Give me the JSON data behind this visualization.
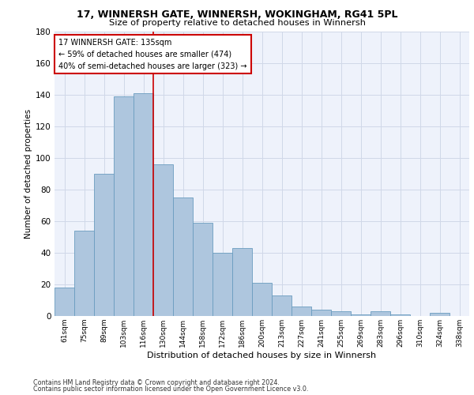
{
  "title_line1": "17, WINNERSH GATE, WINNERSH, WOKINGHAM, RG41 5PL",
  "title_line2": "Size of property relative to detached houses in Winnersh",
  "xlabel": "Distribution of detached houses by size in Winnersh",
  "ylabel": "Number of detached properties",
  "categories": [
    "61sqm",
    "75sqm",
    "89sqm",
    "103sqm",
    "116sqm",
    "130sqm",
    "144sqm",
    "158sqm",
    "172sqm",
    "186sqm",
    "200sqm",
    "213sqm",
    "227sqm",
    "241sqm",
    "255sqm",
    "269sqm",
    "283sqm",
    "296sqm",
    "310sqm",
    "324sqm",
    "338sqm"
  ],
  "values": [
    18,
    54,
    90,
    139,
    141,
    96,
    75,
    59,
    40,
    43,
    21,
    13,
    6,
    4,
    3,
    1,
    3,
    1,
    0,
    2,
    0
  ],
  "bar_color": "#aec6de",
  "bar_edge_color": "#6a9cbf",
  "grid_color": "#d0d8e8",
  "background_color": "#eef2fb",
  "annotation_line1": "17 WINNERSH GATE: 135sqm",
  "annotation_line2": "← 59% of detached houses are smaller (474)",
  "annotation_line3": "40% of semi-detached houses are larger (323) →",
  "annotation_box_color": "#ffffff",
  "annotation_box_edge": "#cc0000",
  "vline_x": 4.5,
  "vline_color": "#cc0000",
  "ylim": [
    0,
    180
  ],
  "yticks": [
    0,
    20,
    40,
    60,
    80,
    100,
    120,
    140,
    160,
    180
  ],
  "footer_line1": "Contains HM Land Registry data © Crown copyright and database right 2024.",
  "footer_line2": "Contains public sector information licensed under the Open Government Licence v3.0."
}
